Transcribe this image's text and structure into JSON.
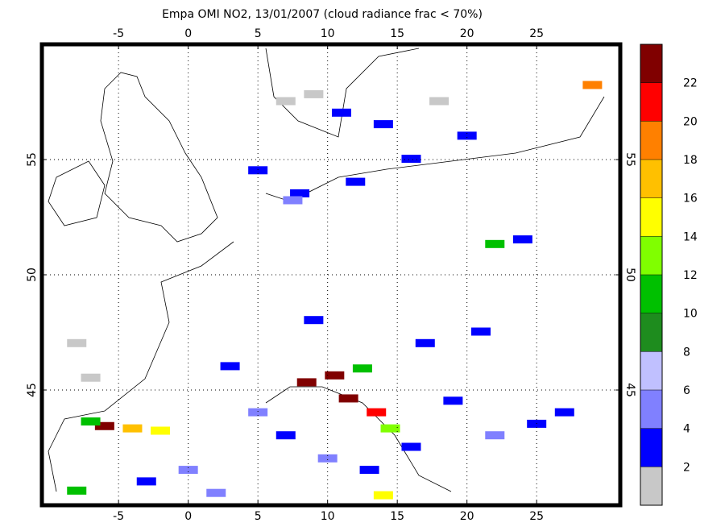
{
  "chart_data": {
    "type": "map",
    "title": "Empa OMI NO2, 13/01/2007 (cloud radiance frac < 70%)",
    "xlim": [
      -10.5,
      31
    ],
    "ylim": [
      40,
      60
    ],
    "xticks": [
      -5,
      0,
      5,
      10,
      15,
      20,
      25
    ],
    "yticks": [
      45,
      50,
      55
    ],
    "grid": true,
    "colorbar": {
      "lim": [
        0,
        24
      ],
      "ticks": [
        2,
        4,
        6,
        8,
        10,
        12,
        14,
        16,
        18,
        20,
        22
      ],
      "levels": [
        0,
        2,
        4,
        6,
        8,
        10,
        12,
        14,
        16,
        18,
        20,
        22,
        24
      ],
      "colors": [
        "#c8c8c8",
        "#0000ff",
        "#8080ff",
        "#c0c0ff",
        "#1e8c1e",
        "#00c000",
        "#80ff00",
        "#ffff00",
        "#ffc000",
        "#ff8000",
        "#ff0000",
        "#800000"
      ]
    },
    "cells": [
      {
        "lon": 7,
        "lat": 57.5,
        "value": 1
      },
      {
        "lon": 9,
        "lat": 57.8,
        "value": 1
      },
      {
        "lon": 11,
        "lat": 57,
        "value": 3
      },
      {
        "lon": 14,
        "lat": 56.5,
        "value": 3
      },
      {
        "lon": 18,
        "lat": 57.5,
        "value": 1
      },
      {
        "lon": 20,
        "lat": 56,
        "value": 3
      },
      {
        "lon": 5,
        "lat": 54.5,
        "value": 3
      },
      {
        "lon": 8,
        "lat": 53.5,
        "value": 3
      },
      {
        "lon": 7.5,
        "lat": 53.2,
        "value": 5
      },
      {
        "lon": 12,
        "lat": 54,
        "value": 3
      },
      {
        "lon": 16,
        "lat": 55,
        "value": 3
      },
      {
        "lon": 29,
        "lat": 58.2,
        "value": 19
      },
      {
        "lon": 24,
        "lat": 51.5,
        "value": 3
      },
      {
        "lon": 22,
        "lat": 51.3,
        "value": 11
      },
      {
        "lon": 10.5,
        "lat": 45.6,
        "value": 23
      },
      {
        "lon": 8.5,
        "lat": 45.3,
        "value": 23
      },
      {
        "lon": 12.5,
        "lat": 45.9,
        "value": 11
      },
      {
        "lon": 11.5,
        "lat": 44.6,
        "value": 23
      },
      {
        "lon": 13.5,
        "lat": 44,
        "value": 21
      },
      {
        "lon": 14.5,
        "lat": 43.3,
        "value": 13
      },
      {
        "lon": -6,
        "lat": 43.4,
        "value": 23
      },
      {
        "lon": -4,
        "lat": 43.3,
        "value": 17
      },
      {
        "lon": -2,
        "lat": 43.2,
        "value": 15
      },
      {
        "lon": -7,
        "lat": 43.6,
        "value": 11
      },
      {
        "lon": -8,
        "lat": 47,
        "value": 1
      },
      {
        "lon": -7,
        "lat": 45.5,
        "value": 1
      },
      {
        "lon": 3,
        "lat": 46,
        "value": 3
      },
      {
        "lon": 5,
        "lat": 44,
        "value": 5
      },
      {
        "lon": 7,
        "lat": 43,
        "value": 3
      },
      {
        "lon": 10,
        "lat": 42,
        "value": 5
      },
      {
        "lon": 13,
        "lat": 41.5,
        "value": 3
      },
      {
        "lon": 16,
        "lat": 42.5,
        "value": 3
      },
      {
        "lon": 19,
        "lat": 44.5,
        "value": 3
      },
      {
        "lon": 22,
        "lat": 43,
        "value": 5
      },
      {
        "lon": 25,
        "lat": 43.5,
        "value": 3
      },
      {
        "lon": 17,
        "lat": 47,
        "value": 3
      },
      {
        "lon": 21,
        "lat": 47.5,
        "value": 3
      },
      {
        "lon": 9,
        "lat": 48,
        "value": 3
      },
      {
        "lon": 0,
        "lat": 41.5,
        "value": 5
      },
      {
        "lon": -3,
        "lat": 41,
        "value": 3
      },
      {
        "lon": -8,
        "lat": 40.6,
        "value": 11
      },
      {
        "lon": 2,
        "lat": 40.5,
        "value": 5
      },
      {
        "lon": 14,
        "lat": 40.4,
        "value": 15
      },
      {
        "lon": 27,
        "lat": 44,
        "value": 3
      }
    ]
  }
}
